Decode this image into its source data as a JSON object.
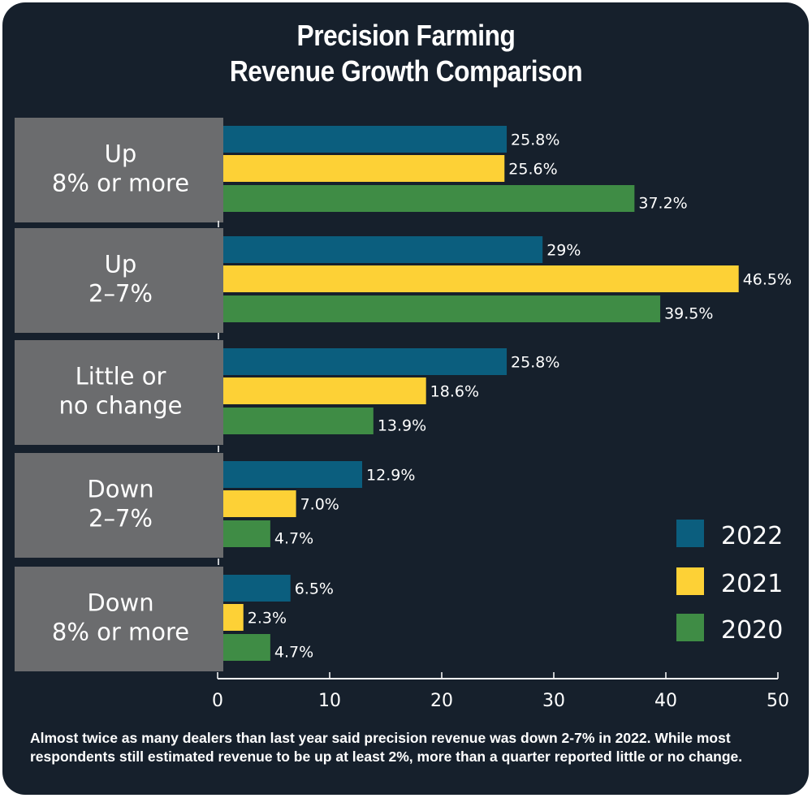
{
  "chart_data": {
    "type": "bar",
    "orientation": "horizontal",
    "title": "Precision Farming",
    "subtitle": "Revenue Growth Comparison",
    "title_lines": [
      "Precision Farming",
      "Revenue Growth Comparison"
    ],
    "categories": [
      [
        "Up",
        "8% or more"
      ],
      [
        "Up",
        "2–7%"
      ],
      [
        "Little or",
        "no change"
      ],
      [
        "Down",
        "2–7%"
      ],
      [
        "Down",
        "8% or more"
      ]
    ],
    "series": [
      {
        "name": "2022",
        "color": "#0b5e7e",
        "values": [
          25.8,
          29,
          25.8,
          12.9,
          6.5
        ],
        "labels": [
          "25.8%",
          "29%",
          "25.8%",
          "12.9%",
          "6.5%"
        ]
      },
      {
        "name": "2021",
        "color": "#fdd136",
        "values": [
          25.6,
          46.5,
          18.6,
          7.0,
          2.3
        ],
        "labels": [
          "25.6%",
          "46.5%",
          "18.6%",
          "7.0%",
          "2.3%"
        ]
      },
      {
        "name": "2020",
        "color": "#3f8c45",
        "values": [
          37.2,
          39.5,
          13.9,
          4.7,
          4.7
        ],
        "labels": [
          "37.2%",
          "39.5%",
          "13.9%",
          "4.7%",
          "4.7%"
        ]
      }
    ],
    "xlabel": "",
    "ylabel": "",
    "xlim": [
      0,
      50
    ],
    "xticks": [
      0,
      10,
      20,
      30,
      40,
      50
    ],
    "grid": false,
    "legend_position": "bottom-right",
    "category_box_color": "#6b6c6e",
    "background_color": "#16202c"
  },
  "caption": "Almost twice as many dealers than last year said precision revenue was down 2-7% in 2022. While most respondents still estimated revenue to be up at least 2%, more than a quarter reported little or no change."
}
